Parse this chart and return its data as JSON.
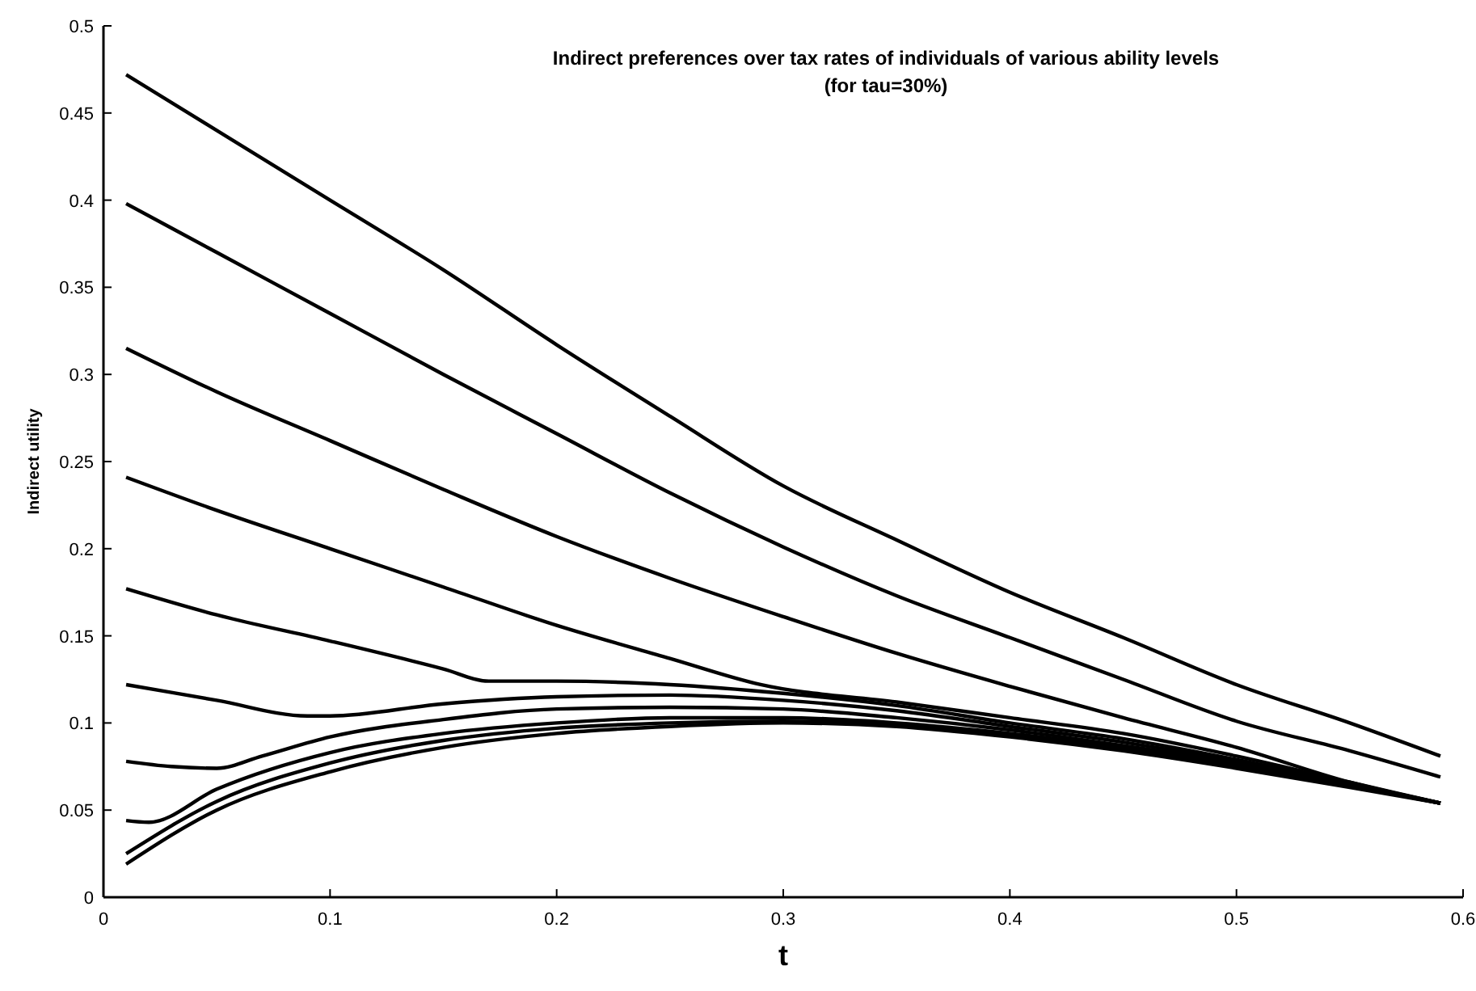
{
  "chart_data": {
    "type": "line",
    "title": "Indirect preferences over tax rates of individuals of various ability levels\n(for tau=30%)",
    "xlabel": "t",
    "ylabel": "Indirect utility",
    "xlim": [
      0,
      0.6
    ],
    "xticks": [
      0,
      0.1,
      0.2,
      0.3,
      0.4,
      0.5,
      0.6
    ],
    "ylim": [
      0,
      0.5
    ],
    "yticks": [
      0,
      0.05,
      0.1,
      0.15,
      0.2,
      0.25,
      0.3,
      0.35,
      0.4,
      0.45,
      0.5
    ],
    "marker": "none",
    "line_style": "solid",
    "series": [
      {
        "color": "#000000",
        "x": [
          0.01,
          0.05,
          0.1,
          0.15,
          0.2,
          0.25,
          0.3,
          0.35,
          0.4,
          0.45,
          0.5,
          0.55,
          0.59
        ],
        "values": [
          0.472,
          0.44,
          0.4,
          0.36,
          0.317,
          0.276,
          0.236,
          0.205,
          0.175,
          0.149,
          0.122,
          0.1,
          0.081
        ]
      },
      {
        "color": "#000000",
        "x": [
          0.01,
          0.05,
          0.1,
          0.15,
          0.2,
          0.25,
          0.3,
          0.35,
          0.4,
          0.45,
          0.5,
          0.55,
          0.59
        ],
        "values": [
          0.398,
          0.37,
          0.335,
          0.3,
          0.266,
          0.232,
          0.201,
          0.173,
          0.149,
          0.125,
          0.101,
          0.084,
          0.069
        ]
      },
      {
        "color": "#000000",
        "x": [
          0.01,
          0.05,
          0.1,
          0.15,
          0.2,
          0.25,
          0.3,
          0.35,
          0.4,
          0.45,
          0.5,
          0.55,
          0.59
        ],
        "values": [
          0.315,
          0.29,
          0.262,
          0.234,
          0.207,
          0.183,
          0.161,
          0.14,
          0.121,
          0.103,
          0.086,
          0.066,
          0.054
        ]
      },
      {
        "color": "#000000",
        "x": [
          0.01,
          0.05,
          0.1,
          0.15,
          0.2,
          0.25,
          0.29,
          0.35,
          0.4,
          0.45,
          0.5,
          0.55,
          0.59
        ],
        "values": [
          0.241,
          0.222,
          0.2,
          0.178,
          0.156,
          0.137,
          0.122,
          0.112,
          0.103,
          0.094,
          0.081,
          0.066,
          0.054
        ]
      },
      {
        "color": "#000000",
        "x": [
          0.01,
          0.05,
          0.1,
          0.15,
          0.17,
          0.2,
          0.25,
          0.3,
          0.35,
          0.4,
          0.45,
          0.5,
          0.55,
          0.59
        ],
        "values": [
          0.177,
          0.162,
          0.147,
          0.131,
          0.124,
          0.124,
          0.122,
          0.117,
          0.11,
          0.1,
          0.091,
          0.079,
          0.065,
          0.054
        ]
      },
      {
        "color": "#000000",
        "x": [
          0.01,
          0.05,
          0.09,
          0.1,
          0.15,
          0.2,
          0.25,
          0.3,
          0.35,
          0.4,
          0.45,
          0.5,
          0.55,
          0.59
        ],
        "values": [
          0.122,
          0.113,
          0.104,
          0.104,
          0.111,
          0.115,
          0.116,
          0.113,
          0.107,
          0.098,
          0.089,
          0.078,
          0.065,
          0.054
        ]
      },
      {
        "color": "#000000",
        "x": [
          0.01,
          0.03,
          0.05,
          0.07,
          0.1,
          0.15,
          0.2,
          0.25,
          0.3,
          0.35,
          0.4,
          0.45,
          0.5,
          0.55,
          0.59
        ],
        "values": [
          0.078,
          0.075,
          0.074,
          0.081,
          0.092,
          0.102,
          0.108,
          0.109,
          0.108,
          0.103,
          0.096,
          0.087,
          0.077,
          0.065,
          0.054
        ]
      },
      {
        "color": "#000000",
        "x": [
          0.01,
          0.02,
          0.05,
          0.1,
          0.15,
          0.2,
          0.25,
          0.3,
          0.35,
          0.4,
          0.45,
          0.5,
          0.55,
          0.59
        ],
        "values": [
          0.044,
          0.043,
          0.062,
          0.083,
          0.094,
          0.1,
          0.103,
          0.103,
          0.1,
          0.094,
          0.086,
          0.076,
          0.064,
          0.054
        ]
      },
      {
        "color": "#000000",
        "x": [
          0.01,
          0.05,
          0.1,
          0.15,
          0.2,
          0.25,
          0.3,
          0.35,
          0.4,
          0.45,
          0.5,
          0.55,
          0.59
        ],
        "values": [
          0.025,
          0.055,
          0.077,
          0.09,
          0.097,
          0.1,
          0.101,
          0.099,
          0.093,
          0.085,
          0.075,
          0.064,
          0.054
        ]
      },
      {
        "color": "#000000",
        "x": [
          0.01,
          0.05,
          0.1,
          0.15,
          0.2,
          0.25,
          0.3,
          0.35,
          0.4,
          0.45,
          0.5,
          0.55,
          0.59
        ],
        "values": [
          0.019,
          0.05,
          0.072,
          0.086,
          0.094,
          0.098,
          0.1,
          0.098,
          0.092,
          0.084,
          0.074,
          0.063,
          0.054
        ]
      }
    ]
  }
}
